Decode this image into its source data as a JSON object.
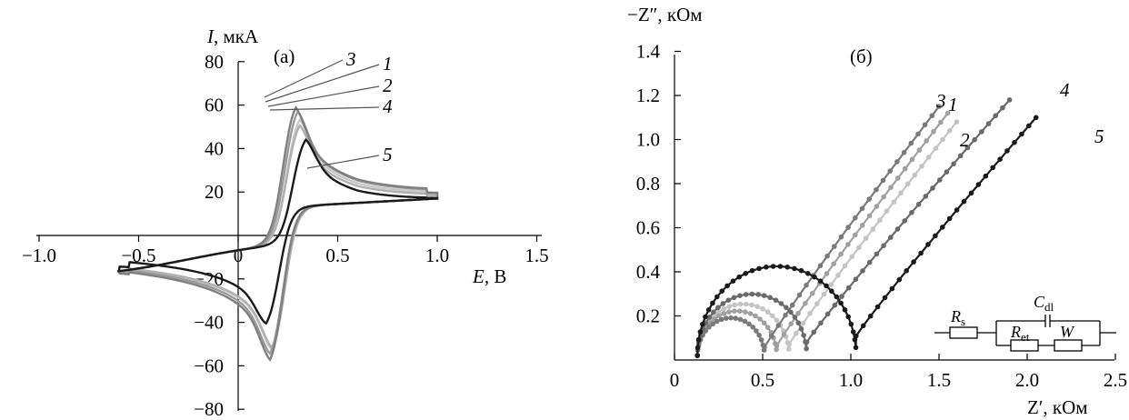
{
  "chart_data": [
    {
      "type": "line",
      "panel_label": "(а)",
      "ylabel_symbol": "I",
      "ylabel_unit": ", мкА",
      "xlabel_symbol": "E",
      "xlabel_unit": ", В",
      "xlim": [
        -1.0,
        1.5
      ],
      "ylim": [
        -80,
        80
      ],
      "x_ticks": [
        "−1.0",
        "−0.5",
        "0",
        "0.5",
        "1.0",
        "1.5"
      ],
      "y_ticks": [
        "80",
        "60",
        "40",
        "20",
        "−20",
        "−40",
        "−60",
        "−80"
      ],
      "series": [
        {
          "name": "1",
          "color": "#9a9a9a",
          "peak_anodic": [
            0.3,
            62
          ],
          "peak_cathodic": [
            0.16,
            -60
          ]
        },
        {
          "name": "2",
          "color": "#c8c8c8",
          "peak_anodic": [
            0.31,
            58
          ],
          "peak_cathodic": [
            0.17,
            -58
          ]
        },
        {
          "name": "3",
          "color": "#808080",
          "peak_anodic": [
            0.29,
            64
          ],
          "peak_cathodic": [
            0.16,
            -63
          ]
        },
        {
          "name": "4",
          "color": "#b0b0b0",
          "peak_anodic": [
            0.31,
            55
          ],
          "peak_cathodic": [
            0.17,
            -57
          ]
        },
        {
          "name": "5",
          "color": "#1a1a1a",
          "peak_anodic": [
            0.34,
            48
          ],
          "peak_cathodic": [
            0.14,
            -45
          ]
        }
      ]
    },
    {
      "type": "scatter",
      "panel_label": "(б)",
      "ylabel": "−Z″, кОм",
      "xlabel": "Z′, кОм",
      "xlim": [
        0,
        2.5
      ],
      "ylim": [
        0,
        1.4
      ],
      "x_ticks": [
        "0",
        "0.5",
        "1.0",
        "1.5",
        "2.0",
        "2.5"
      ],
      "y_ticks": [
        "1.4",
        "1.2",
        "1.0",
        "0.8",
        "0.6",
        "0.4",
        "0.2"
      ],
      "series": [
        {
          "name": "1",
          "color": "#a0a0a0",
          "rs": 0.13,
          "rct": 0.45,
          "end": [
            1.55,
            1.12
          ]
        },
        {
          "name": "2",
          "color": "#c4c4c4",
          "rs": 0.13,
          "rct": 0.52,
          "end": [
            1.6,
            1.08
          ]
        },
        {
          "name": "3",
          "color": "#7a7a7a",
          "rs": 0.13,
          "rct": 0.38,
          "end": [
            1.5,
            1.15
          ]
        },
        {
          "name": "4",
          "color": "#6a6a6a",
          "rs": 0.13,
          "rct": 0.62,
          "end": [
            1.9,
            1.18
          ]
        },
        {
          "name": "5",
          "color": "#1a1a1a",
          "rs": 0.13,
          "rct": 0.9,
          "end": [
            2.05,
            1.1
          ]
        }
      ]
    }
  ],
  "circuit": {
    "rs": "R",
    "rs_sub": "s",
    "ret": "R",
    "ret_sub": "et",
    "cdl": "C",
    "cdl_sub": "dl",
    "w": "W"
  }
}
